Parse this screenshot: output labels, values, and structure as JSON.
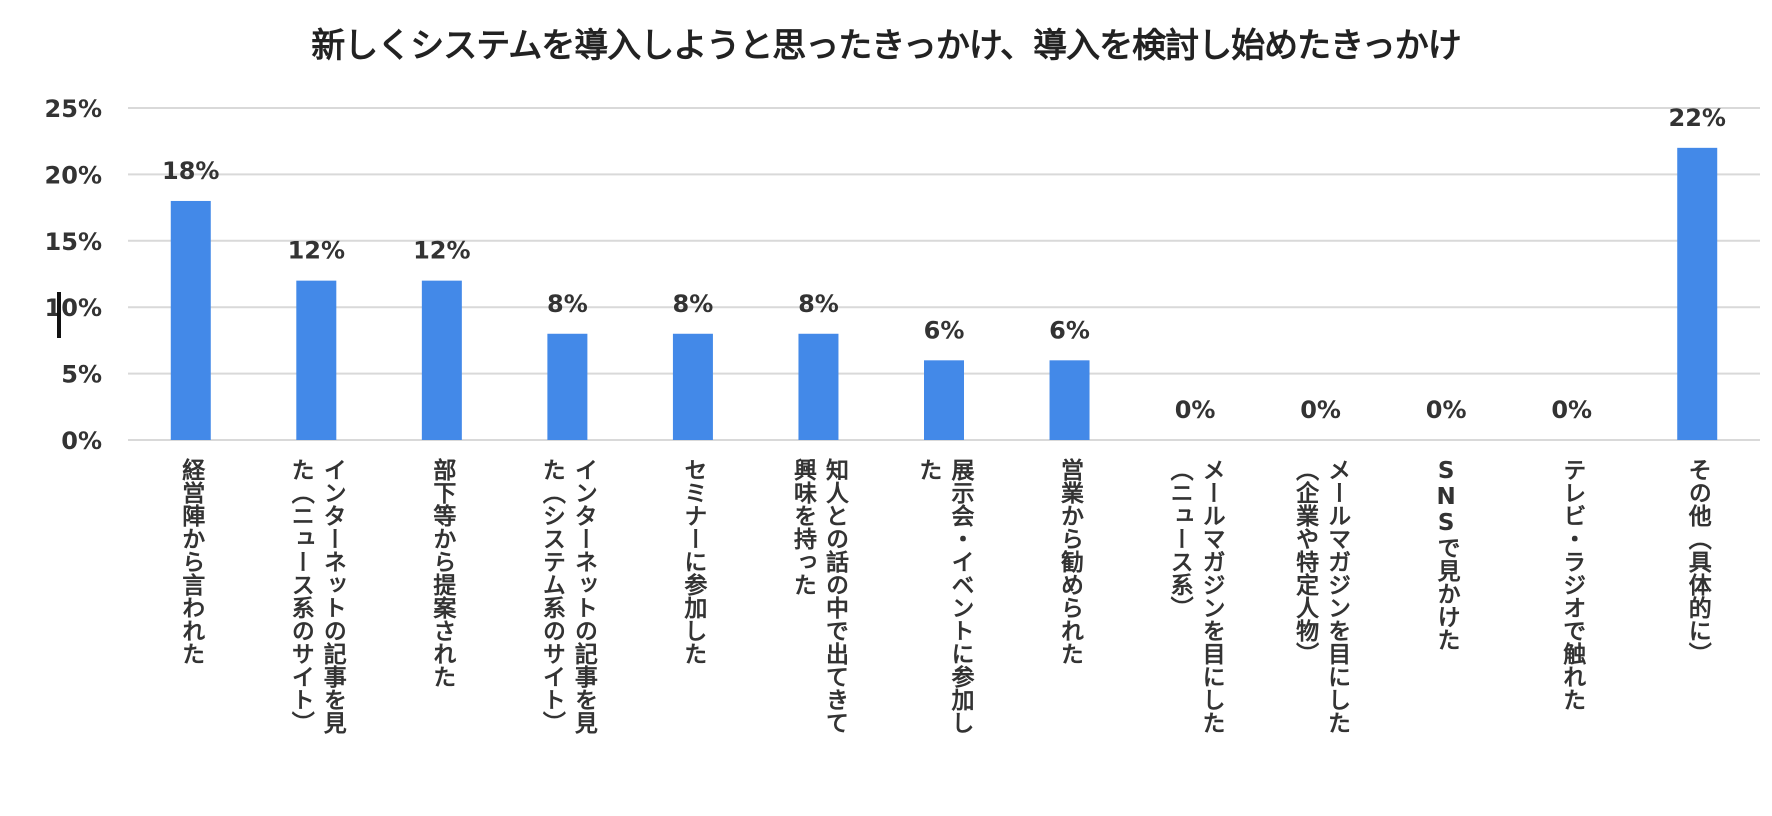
{
  "chart_data": {
    "type": "bar",
    "title": "新しくシステムを導入しようと思ったきっかけ、導入を検討し始めたきっかけ",
    "xlabel": "",
    "ylabel": "",
    "ylim": [
      0,
      25
    ],
    "yticks": [
      "0%",
      "5%",
      "10%",
      "15%",
      "20%",
      "25%"
    ],
    "ytick_values": [
      0,
      5,
      10,
      15,
      20,
      25
    ],
    "grid": true,
    "legend": "none",
    "bar_color": "#4389e8",
    "categories": [
      [
        "経営陣から言われた"
      ],
      [
        "インターネットの記事を見",
        "た（ニュース系のサイト）"
      ],
      [
        "部下等から提案された"
      ],
      [
        "インターネットの記事を見",
        "た（システム系のサイト）"
      ],
      [
        "セミナーに参加した"
      ],
      [
        "知人との話の中で出てきて",
        "興味を持った"
      ],
      [
        "展示会・イベントに参加し",
        "た"
      ],
      [
        "営業から勧められた"
      ],
      [
        "メールマガジンを目にした",
        "（ニュース系）"
      ],
      [
        "メールマガジンを目にした",
        "（企業や特定人物）"
      ],
      [
        "SNSで見かけた"
      ],
      [
        "テレビ・ラジオで触れた"
      ],
      [
        "その他（具体的に）"
      ]
    ],
    "values": [
      18,
      12,
      12,
      8,
      8,
      8,
      6,
      6,
      0,
      0,
      0,
      0,
      22
    ],
    "data_labels": [
      "18%",
      "12%",
      "12%",
      "8%",
      "8%",
      "8%",
      "6%",
      "6%",
      "0%",
      "0%",
      "0%",
      "0%",
      "22%"
    ]
  }
}
